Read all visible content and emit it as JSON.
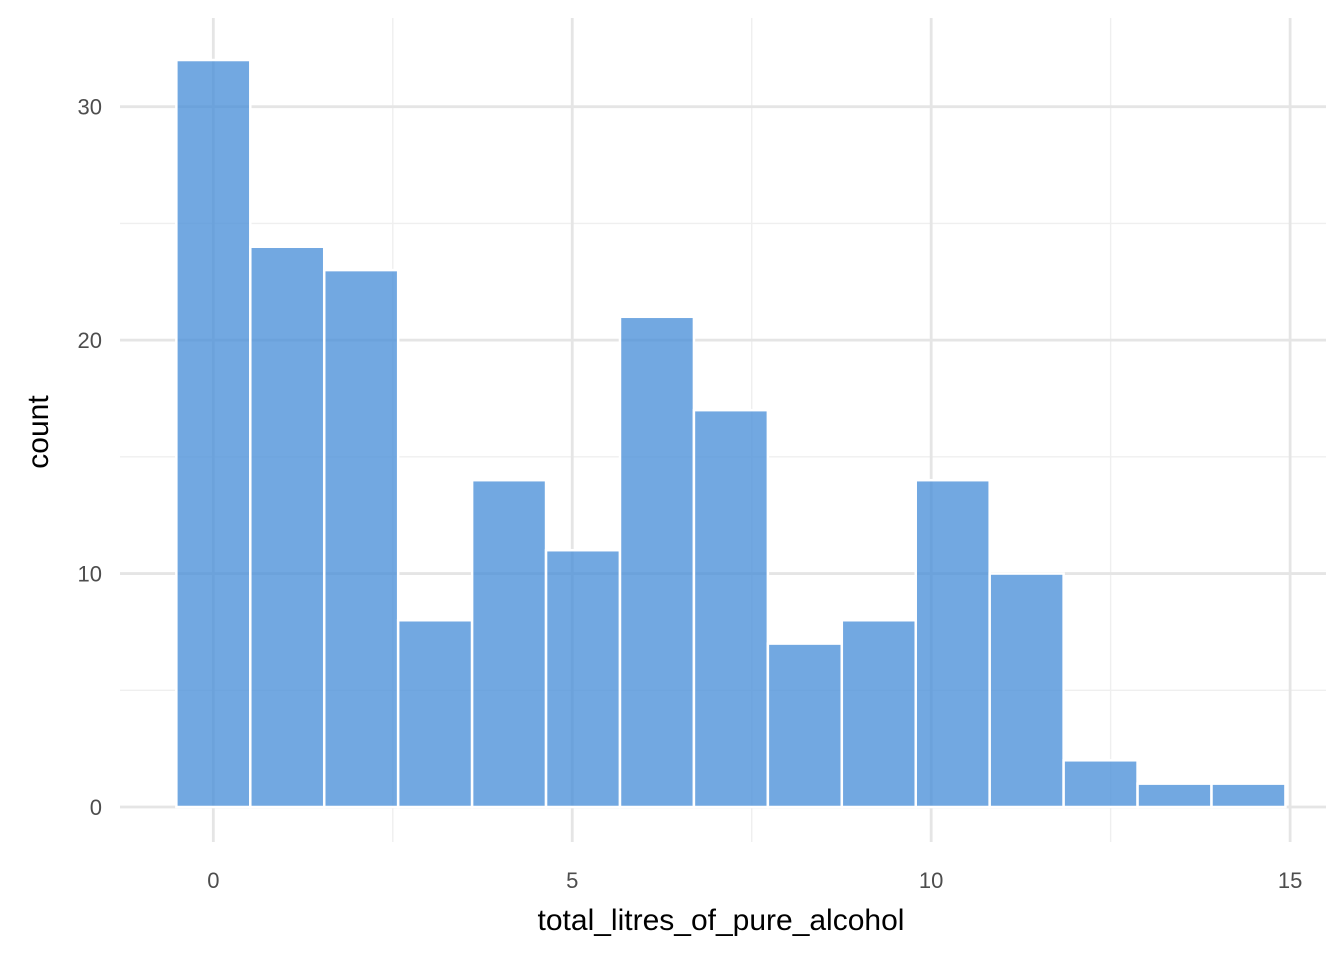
{
  "chart_data": {
    "type": "bar",
    "xlabel": "total_litres_of_pure_alcohol",
    "ylabel": "count",
    "xlim": [
      -1.3,
      15.5
    ],
    "ylim": [
      -1.5,
      33.8
    ],
    "x_ticks": [
      0,
      5,
      10,
      15
    ],
    "x_minor_ticks": [
      2.5,
      7.5,
      12.5
    ],
    "y_ticks": [
      0,
      10,
      20,
      30
    ],
    "y_minor_ticks": [
      5,
      15,
      25
    ],
    "grid": true,
    "bin_width": 1.03,
    "bins": [
      {
        "x_start": -0.515,
        "x_end": 0.515,
        "count": 32
      },
      {
        "x_start": 0.515,
        "x_end": 1.545,
        "count": 24
      },
      {
        "x_start": 1.545,
        "x_end": 2.575,
        "count": 23
      },
      {
        "x_start": 2.575,
        "x_end": 3.605,
        "count": 8
      },
      {
        "x_start": 3.605,
        "x_end": 4.635,
        "count": 14
      },
      {
        "x_start": 4.635,
        "x_end": 5.665,
        "count": 11
      },
      {
        "x_start": 5.665,
        "x_end": 6.695,
        "count": 21
      },
      {
        "x_start": 6.695,
        "x_end": 7.725,
        "count": 17
      },
      {
        "x_start": 7.725,
        "x_end": 8.755,
        "count": 7
      },
      {
        "x_start": 8.755,
        "x_end": 9.785,
        "count": 8
      },
      {
        "x_start": 9.785,
        "x_end": 10.815,
        "count": 14
      },
      {
        "x_start": 10.815,
        "x_end": 11.845,
        "count": 10
      },
      {
        "x_start": 11.845,
        "x_end": 12.875,
        "count": 2
      },
      {
        "x_start": 12.875,
        "x_end": 13.905,
        "count": 1
      },
      {
        "x_start": 13.905,
        "x_end": 14.935,
        "count": 1
      }
    ],
    "colors": {
      "bar_fill": "#4a90d9",
      "bar_opacity": 0.78,
      "bar_stroke": "#ffffff",
      "grid_major": "#e5e5e5",
      "grid_minor": "#efefef"
    }
  }
}
